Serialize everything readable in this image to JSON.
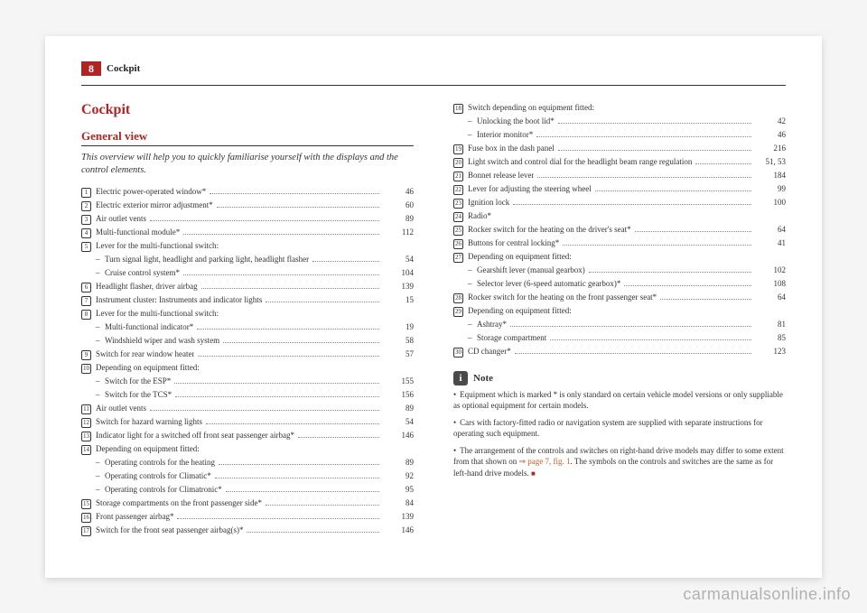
{
  "pageNumber": "8",
  "headerTitle": "Cockpit",
  "mainTitle": "Cockpit",
  "subTitle": "General view",
  "intro": "This overview will help you to quickly familiarise yourself with the displays and the control elements.",
  "watermark": "carmanualsonline.info",
  "leftItems": [
    {
      "marker": "1",
      "label": "Electric power-operated window*",
      "page": "46"
    },
    {
      "marker": "2",
      "label": "Electric exterior mirror adjustment*",
      "page": "60"
    },
    {
      "marker": "3",
      "label": "Air outlet vents",
      "page": "89"
    },
    {
      "marker": "4",
      "label": "Multi-functional module*",
      "page": "112"
    },
    {
      "marker": "5",
      "label": "Lever for the multi-functional switch:",
      "page": ""
    },
    {
      "sub": true,
      "label": "Turn signal light, headlight and parking light, headlight flasher",
      "page": "54"
    },
    {
      "sub": true,
      "label": "Cruise control system*",
      "page": "104"
    },
    {
      "marker": "6",
      "label": "Headlight flasher, driver airbag",
      "page": "139"
    },
    {
      "marker": "7",
      "label": "Instrument cluster: Instruments and indicator lights",
      "page": "15"
    },
    {
      "marker": "8",
      "label": "Lever for the multi-functional switch:",
      "page": ""
    },
    {
      "sub": true,
      "label": "Multi-functional indicator*",
      "page": "19"
    },
    {
      "sub": true,
      "label": "Windshield wiper and wash system",
      "page": "58"
    },
    {
      "marker": "9",
      "label": "Switch for rear window heater",
      "page": "57"
    },
    {
      "marker": "10",
      "label": "Depending on equipment fitted:",
      "page": ""
    },
    {
      "sub": true,
      "label": "Switch for the ESP*",
      "page": "155"
    },
    {
      "sub": true,
      "label": "Switch for the TCS*",
      "page": "156"
    },
    {
      "marker": "11",
      "label": "Air outlet vents",
      "page": "89"
    },
    {
      "marker": "12",
      "label": "Switch for hazard warning lights",
      "page": "54"
    },
    {
      "marker": "13",
      "label": "Indicator light for a switched off front seat passenger airbag*",
      "page": "146"
    },
    {
      "marker": "14",
      "label": "Depending on equipment fitted:",
      "page": ""
    },
    {
      "sub": true,
      "label": "Operating controls for the heating",
      "page": "89"
    },
    {
      "sub": true,
      "label": "Operating controls for Climatic*",
      "page": "92"
    },
    {
      "sub": true,
      "label": "Operating controls for Climatronic*",
      "page": "95"
    },
    {
      "marker": "15",
      "label": "Storage compartments on the front passenger side*",
      "page": "84"
    },
    {
      "marker": "16",
      "label": "Front passenger airbag*",
      "page": "139"
    },
    {
      "marker": "17",
      "label": "Switch for the front seat passenger airbag(s)*",
      "page": "146"
    }
  ],
  "rightItems": [
    {
      "marker": "18",
      "label": "Switch depending on equipment fitted:",
      "page": ""
    },
    {
      "sub": true,
      "label": "Unlocking the boot lid*",
      "page": "42"
    },
    {
      "sub": true,
      "label": "Interior monitor*",
      "page": "46"
    },
    {
      "marker": "19",
      "label": "Fuse box in the dash panel",
      "page": "216"
    },
    {
      "marker": "20",
      "label": "Light switch and control dial for the headlight beam range regulation",
      "page": "51, 53",
      "wrap": true
    },
    {
      "marker": "21",
      "label": "Bonnet release lever",
      "page": "184"
    },
    {
      "marker": "22",
      "label": "Lever for adjusting the steering wheel",
      "page": "99"
    },
    {
      "marker": "23",
      "label": "Ignition lock",
      "page": "100"
    },
    {
      "marker": "24",
      "label": "Radio*",
      "page": ""
    },
    {
      "marker": "25",
      "label": "Rocker switch for the heating on the driver's seat*",
      "page": "64"
    },
    {
      "marker": "26",
      "label": "Buttons for central locking*",
      "page": "41"
    },
    {
      "marker": "27",
      "label": "Depending on equipment fitted:",
      "page": ""
    },
    {
      "sub": true,
      "label": "Gearshift lever (manual gearbox)",
      "page": "102"
    },
    {
      "sub": true,
      "label": "Selector lever (6-speed automatic gearbox)*",
      "page": "108"
    },
    {
      "marker": "28",
      "label": "Rocker switch for the heating on the front passenger seat*",
      "page": "64"
    },
    {
      "marker": "29",
      "label": "Depending on equipment fitted:",
      "page": ""
    },
    {
      "sub": true,
      "label": "Ashtray*",
      "page": "81"
    },
    {
      "sub": true,
      "label": "Storage compartment",
      "page": "85"
    },
    {
      "marker": "30",
      "label": "CD changer*",
      "page": "123"
    }
  ],
  "note": {
    "title": "Note",
    "icon": "i",
    "paragraphs": [
      "Equipment which is marked * is only standard on certain vehicle model versions or only suppliable as optional equipment for certain models.",
      "Cars with factory-fitted radio or navigation system are supplied with separate instructions for operating such equipment.",
      "The arrangement of the controls and switches on right-hand drive models may differ to some extent from that shown on ⇒ page 7, fig. 1. The symbols on the controls and switches are the same as for left-hand drive models."
    ],
    "linkText": "⇒ page 7, fig. 1"
  }
}
